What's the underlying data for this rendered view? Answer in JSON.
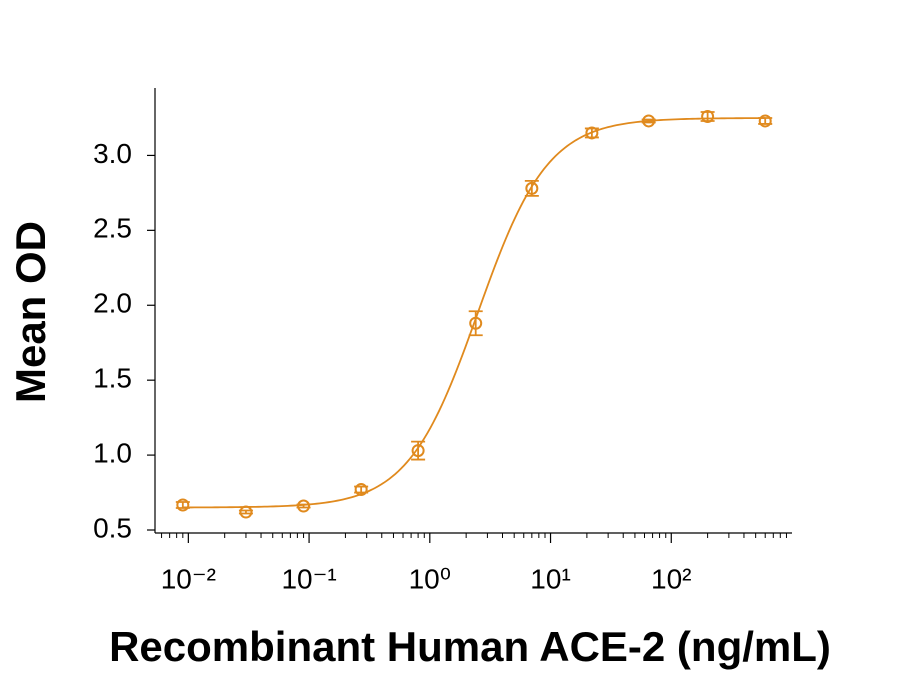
{
  "chart_data": {
    "type": "scatter",
    "x_label": "Recombinant Human ACE-2 (ng/mL)",
    "y_label": "Mean OD",
    "xscale": "log",
    "color": "#e08a1e",
    "x": [
      0.009,
      0.03,
      0.09,
      0.27,
      0.8,
      2.4,
      7,
      22,
      65,
      200,
      600
    ],
    "values": [
      0.667,
      0.62,
      0.66,
      0.77,
      1.03,
      1.88,
      2.78,
      3.15,
      3.23,
      3.26,
      3.23
    ],
    "errors": [
      0.02,
      0.01,
      0.01,
      0.02,
      0.06,
      0.08,
      0.05,
      0.03,
      0.01,
      0.03,
      0.02
    ],
    "fit": {
      "bottom": 0.65,
      "top": 3.25,
      "ec50": 2.5,
      "hill": 1.5
    },
    "xlim": [
      0.005,
      1000
    ],
    "ylim": [
      0.48,
      3.45
    ],
    "xticks": [
      {
        "value": 0.01,
        "label": "10⁻²"
      },
      {
        "value": 0.1,
        "label": "10⁻¹"
      },
      {
        "value": 1,
        "label": "10⁰"
      },
      {
        "value": 10,
        "label": "10¹"
      },
      {
        "value": 100,
        "label": "10²"
      }
    ],
    "xminorticks": [
      0.006,
      0.007,
      0.008,
      0.009,
      0.02,
      0.03,
      0.04,
      0.05,
      0.06,
      0.07,
      0.08,
      0.09,
      0.2,
      0.3,
      0.4,
      0.5,
      0.6,
      0.7,
      0.8,
      0.9,
      2,
      3,
      4,
      5,
      6,
      7,
      8,
      9,
      20,
      30,
      40,
      50,
      60,
      70,
      80,
      90,
      200,
      300,
      400,
      500,
      600,
      700,
      800,
      900
    ],
    "yticks": [
      0.5,
      {
        "value": 1,
        "label": "1.0"
      },
      1.5,
      {
        "value": 2,
        "label": "2.0"
      },
      2.5,
      {
        "value": 3,
        "label": "3.0"
      }
    ]
  }
}
